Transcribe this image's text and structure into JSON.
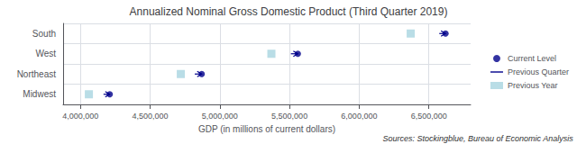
{
  "chart_data": {
    "type": "dot",
    "title": "Annualized Nominal Gross Domestic Product (Third Quarter 2019)",
    "xlabel": "GDP (in millions of current dollars)",
    "annotations": [
      "Sources: Stockingblue, Bureau of Economic Analysis"
    ],
    "categories": [
      "South",
      "West",
      "Northeast",
      "Midwest"
    ],
    "series": [
      {
        "name": "Current Level",
        "type": "scatter",
        "marker": "circle",
        "color": "#00008B",
        "values": [
          6620000,
          5560000,
          4870000,
          4210000
        ]
      },
      {
        "name": "Previous Quarter",
        "type": "arrow",
        "color": "#00008B",
        "values": [
          6575000,
          5510000,
          4820000,
          4165000
        ]
      },
      {
        "name": "Previous Year",
        "type": "scatter",
        "marker": "square",
        "color": "#a8d4e0",
        "values": [
          6370000,
          5370000,
          4720000,
          4060000
        ]
      }
    ],
    "xlim": [
      3875000,
      6800000
    ],
    "xticks": [
      {
        "value": 4000000,
        "label": "4,000,000"
      },
      {
        "value": 4500000,
        "label": "4,500,000"
      },
      {
        "value": 5000000,
        "label": "5,000,000"
      },
      {
        "value": 5500000,
        "label": "5,500,000"
      },
      {
        "value": 6000000,
        "label": "6,000,000"
      },
      {
        "value": 6500000,
        "label": "6,500,000"
      }
    ],
    "grid": true,
    "legend": "right"
  }
}
